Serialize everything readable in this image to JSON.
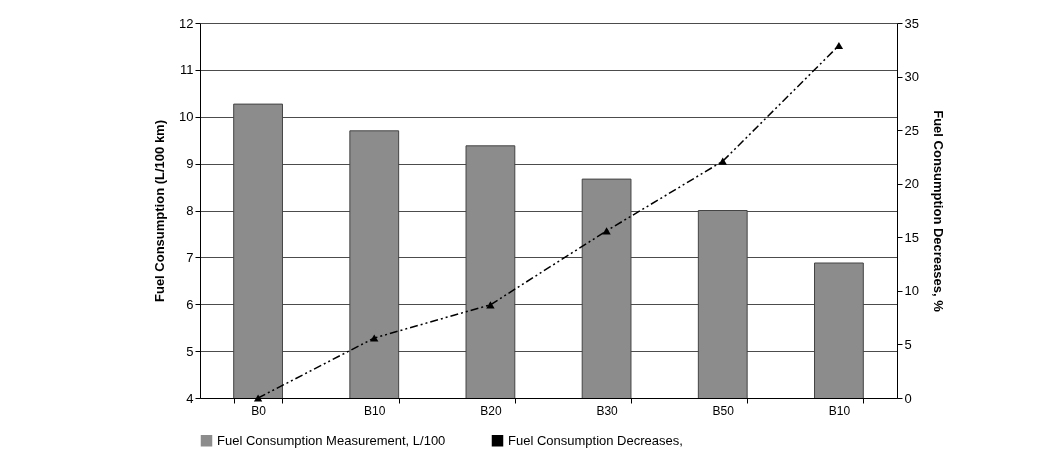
{
  "chart_data": {
    "type": "bar",
    "categories": [
      "B0",
      "B10",
      "B20",
      "B30",
      "B50",
      "B10"
    ],
    "ylabel": "Fuel Consumption (L/100 km)",
    "y2label": "Fuel Consumption Decreases, %",
    "series": [
      {
        "name": "Fuel Consumption Measurement,  L/100",
        "color": "#8c8c8c",
        "values": [
          10.27,
          9.7,
          9.38,
          8.67,
          8.0,
          6.88
        ]
      },
      {
        "name": "Fuel Consumption Decreases,",
        "type": "line",
        "axis": "y2",
        "color": "#000000",
        "marker": "triangle",
        "line_style": "dashed",
        "values": [
          0,
          5.6,
          8.7,
          15.6,
          22.1,
          32.9
        ]
      }
    ],
    "ylim": [
      4,
      12
    ],
    "yticks": [
      4,
      5,
      6,
      7,
      8,
      9,
      10,
      11,
      12
    ],
    "y2lim": [
      0,
      35
    ],
    "y2ticks": [
      0,
      5,
      10,
      15,
      20,
      25,
      30,
      35
    ],
    "grid": "y",
    "legend": "bottom"
  }
}
